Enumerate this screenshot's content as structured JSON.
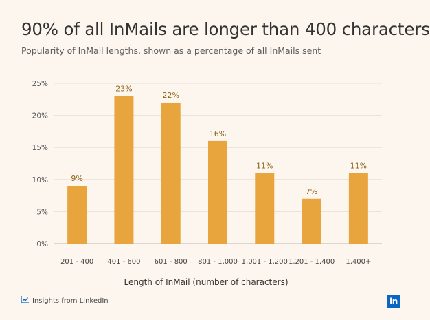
{
  "title": "90% of all InMails are longer than 400 characters",
  "subtitle": "Popularity of InMail lengths, shown as a percentage of all InMails sent",
  "footer": {
    "text": "Insights from LinkedIn",
    "icon": "chart-line-icon"
  },
  "logo": {
    "text": "in",
    "color": "#0A66C2"
  },
  "chart_data": {
    "type": "bar",
    "categories": [
      "201 - 400",
      "401 - 600",
      "601 - 800",
      "801 - 1,000",
      "1,001 - 1,200",
      "1,201 - 1,400",
      "1,400+"
    ],
    "values": [
      9,
      23,
      22,
      16,
      11,
      7,
      11
    ],
    "data_labels": [
      "9%",
      "23%",
      "22%",
      "16%",
      "11%",
      "7%",
      "11%"
    ],
    "title": "90% of all InMails are longer than 400 characters",
    "xlabel": "Length of InMail (number of characters)",
    "ylabel": "",
    "ylim": [
      0,
      25
    ],
    "yticks": [
      0,
      5,
      10,
      15,
      20,
      25
    ],
    "ytick_labels": [
      "0%",
      "5%",
      "10%",
      "15%",
      "20%",
      "25%"
    ],
    "grid": true,
    "bar_color": "#E8A53D",
    "label_color": "#8C6316"
  }
}
